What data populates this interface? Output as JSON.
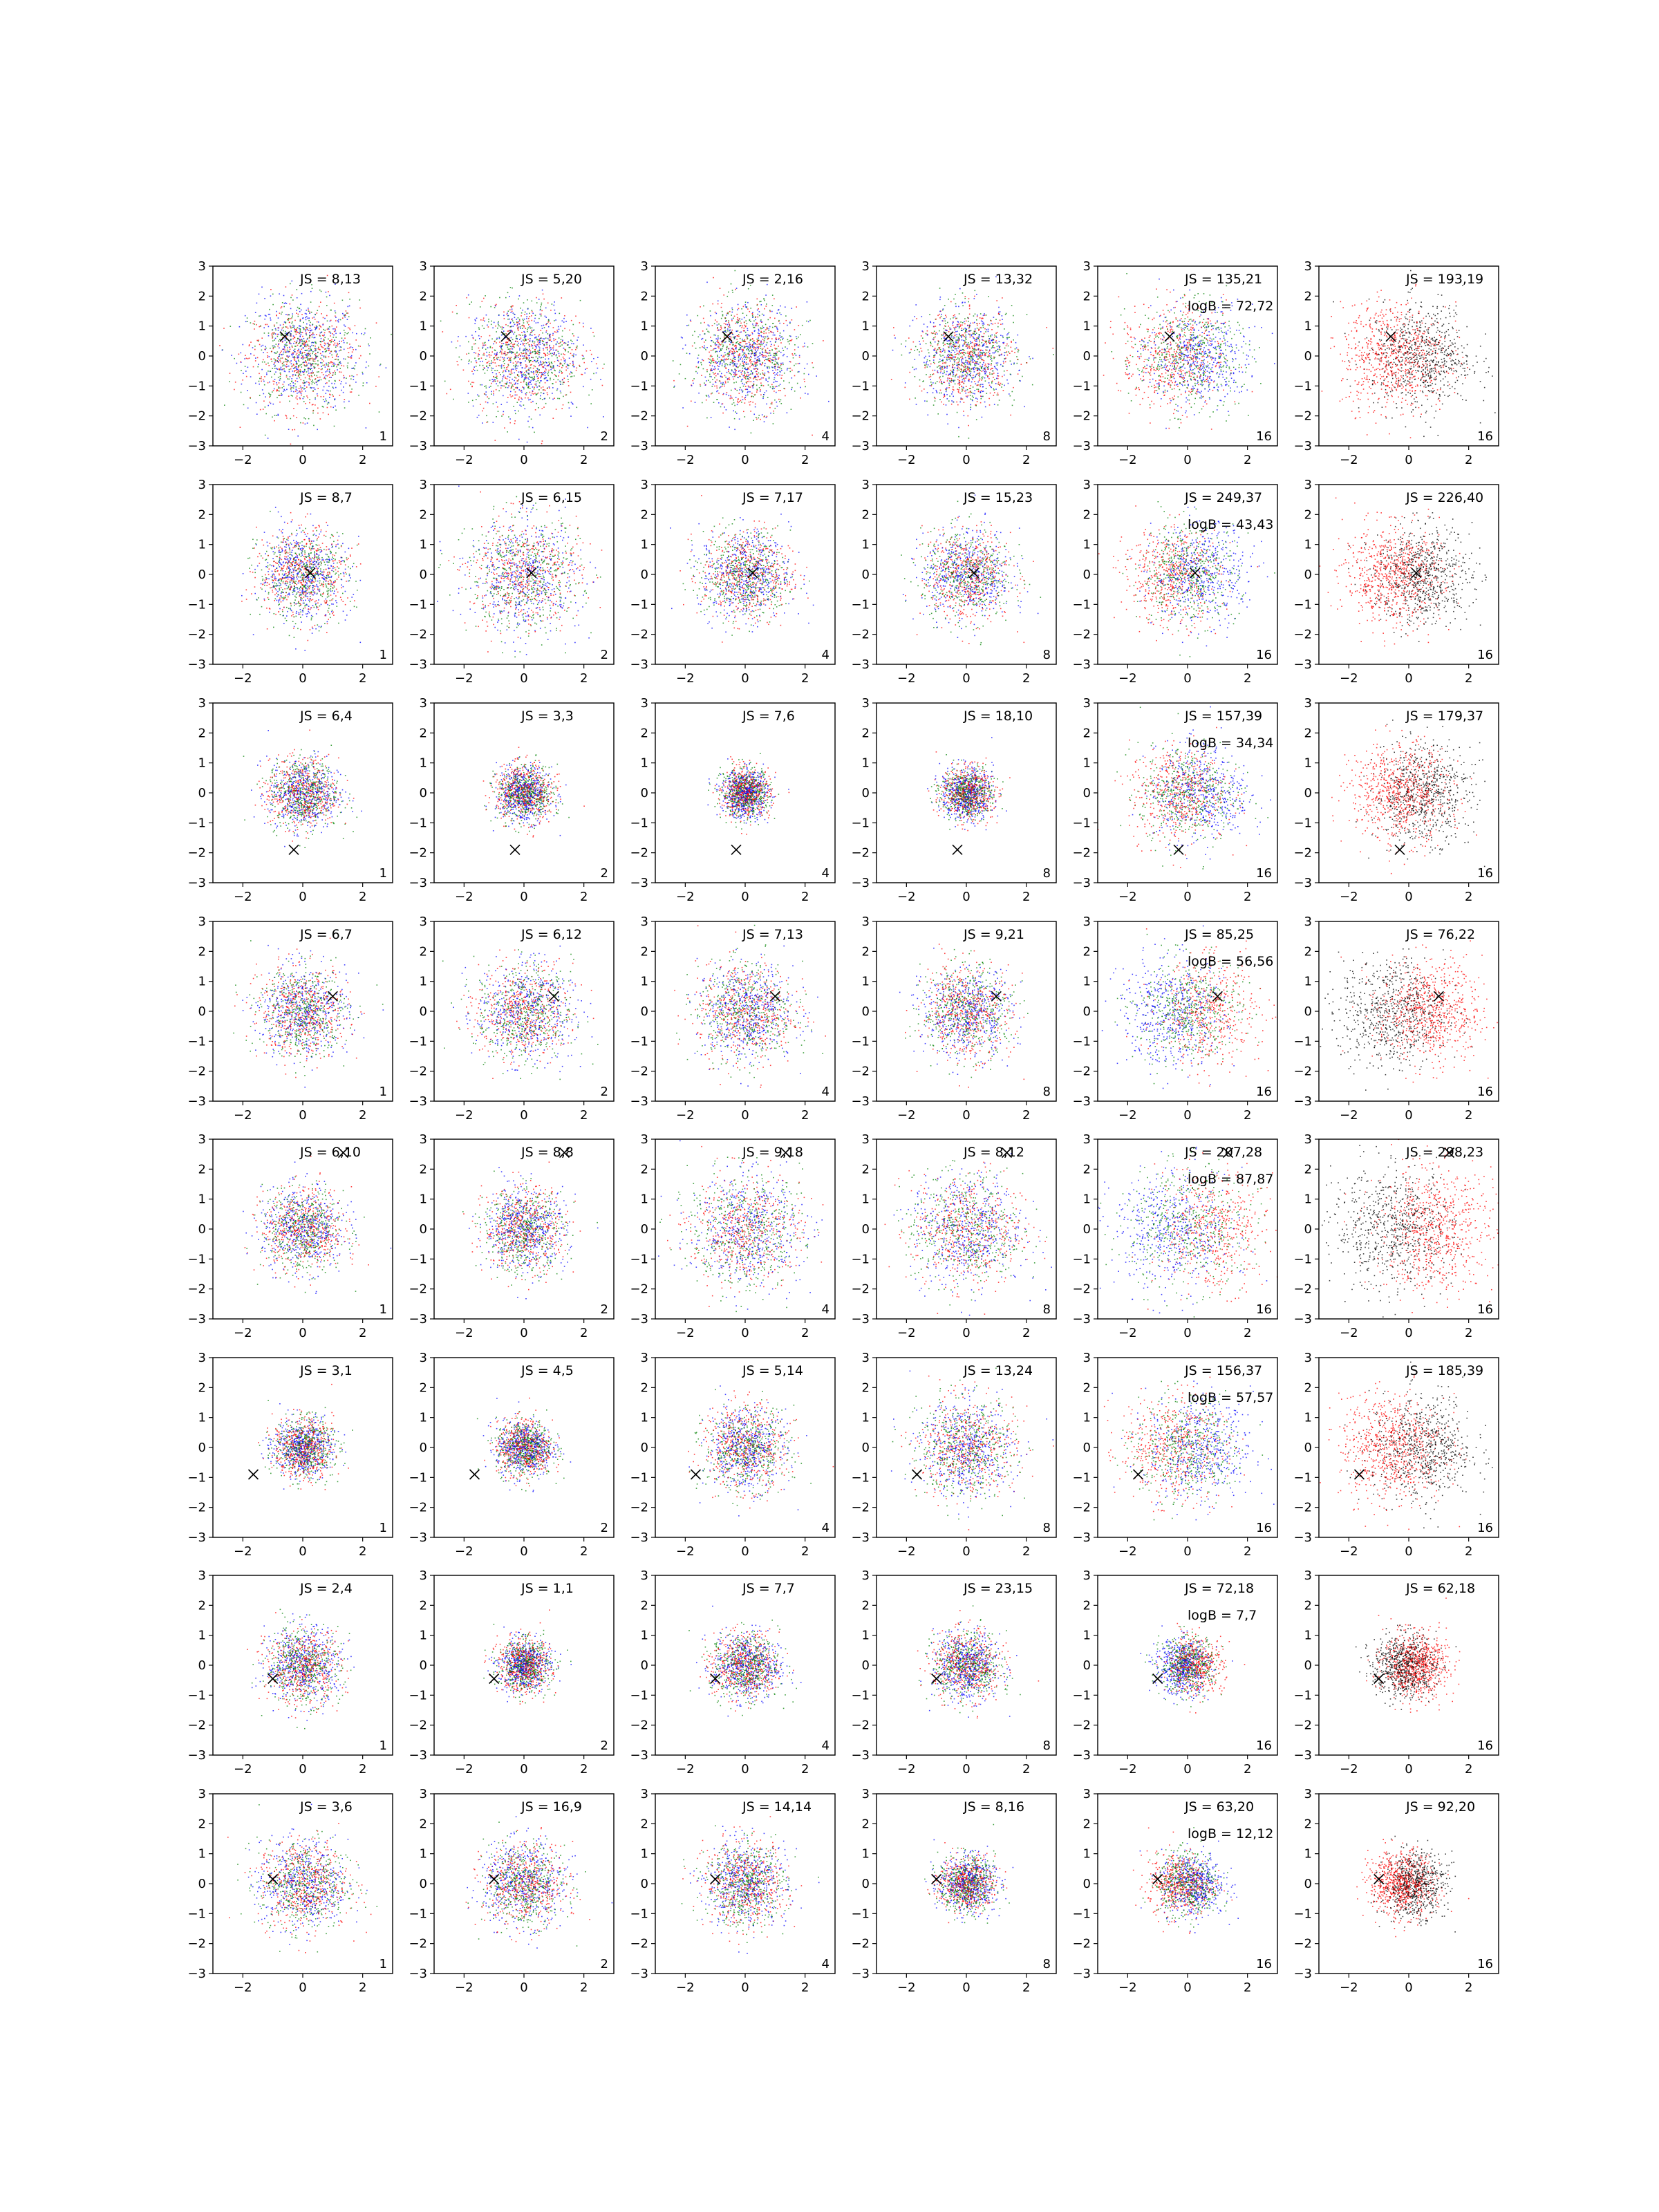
{
  "chart_data": {
    "type": "scatter",
    "layout": "8x6 grid of scatter panels",
    "xlim": [
      -3,
      3
    ],
    "ylim": [
      -3,
      3
    ],
    "xticks": [
      "−2",
      "0",
      "2"
    ],
    "yticks": [
      "3",
      "2",
      "1",
      "0",
      "−1",
      "−2",
      "−3"
    ],
    "grid": false,
    "colors": {
      "red": "#ff0000",
      "green": "#008000",
      "blue": "#0000ff",
      "black": "#000000"
    },
    "column_corner_labels": [
      "1",
      "2",
      "4",
      "8",
      "16",
      "16"
    ],
    "last_column_colors": [
      "red",
      "black"
    ],
    "rows": [
      {
        "marker": [
          -0.6,
          0.65
        ],
        "js": [
          "JS = 8,13",
          "JS = 5,20",
          "JS = 2,16",
          "JS = 13,32",
          "JS = 135,21",
          "JS = 193,19"
        ],
        "logb": "logB = 72,72",
        "shape": {
          "spread": [
            1.5,
            1.5,
            1.4,
            1.3,
            1.4,
            1.4
          ],
          "shift": [
            -0.9,
            0.9
          ]
        }
      },
      {
        "marker": [
          0.25,
          0.05
        ],
        "js": [
          "JS = 8,7",
          "JS = 6,15",
          "JS = 7,17",
          "JS = 15,23",
          "JS = 249,37",
          "JS = 226,40"
        ],
        "logb": "logB = 43,43",
        "shape": {
          "spread": [
            1.2,
            1.5,
            1.2,
            1.2,
            1.3,
            1.3
          ],
          "shift": [
            -1.0,
            1.0
          ]
        }
      },
      {
        "marker": [
          -0.3,
          -1.9
        ],
        "js": [
          "JS = 6,4",
          "JS = 3,3",
          "JS = 7,6",
          "JS = 18,10",
          "JS = 157,39",
          "JS = 179,37"
        ],
        "logb": "logB = 34,34",
        "shape": {
          "spread": [
            0.95,
            0.75,
            0.65,
            0.7,
            1.3,
            1.3
          ],
          "shift": [
            -0.6,
            1.0
          ]
        }
      },
      {
        "marker": [
          1.0,
          0.5
        ],
        "js": [
          "JS = 6,7",
          "JS = 6,12",
          "JS = 7,13",
          "JS = 9,21",
          "JS = 85,25",
          "JS = 76,22"
        ],
        "logb": "logB = 56,56",
        "shape": {
          "spread": [
            1.2,
            1.3,
            1.3,
            1.2,
            1.4,
            1.4
          ],
          "shift": [
            1.2,
            -1.2
          ]
        }
      },
      {
        "marker": [
          1.35,
          2.55
        ],
        "js": [
          "JS = 6,10",
          "JS = 8,8",
          "JS = 9,18",
          "JS = 8,12",
          "JS = 207,28",
          "JS = 298,23"
        ],
        "logb": "logB = 87,87",
        "shape": {
          "spread": [
            1.1,
            1.1,
            1.5,
            1.5,
            1.6,
            1.6
          ],
          "shift": [
            1.6,
            -1.2
          ]
        }
      },
      {
        "marker": [
          -1.65,
          -0.9
        ],
        "js": [
          "JS = 3,1",
          "JS = 4,5",
          "JS = 5,14",
          "JS = 13,24",
          "JS = 156,37",
          "JS = 185,39"
        ],
        "logb": "logB = 57,57",
        "shape": {
          "spread": [
            0.8,
            0.75,
            1.1,
            1.3,
            1.4,
            1.4
          ],
          "shift": [
            -1.0,
            0.9
          ]
        }
      },
      {
        "marker": [
          -1.0,
          -0.45
        ],
        "js": [
          "JS = 2,4",
          "JS = 1,1",
          "JS = 7,7",
          "JS = 23,15",
          "JS = 72,18",
          "JS = 62,18"
        ],
        "logb": "logB = 7,7",
        "shape": {
          "spread": [
            1.0,
            0.7,
            0.9,
            0.9,
            0.75,
            0.85
          ],
          "shift": [
            0.4,
            -0.4
          ]
        }
      },
      {
        "marker": [
          -1.0,
          0.15
        ],
        "js": [
          "JS = 3,6",
          "JS = 16,9",
          "JS = 14,14",
          "JS = 8,16",
          "JS = 63,20",
          "JS = 92,20"
        ],
        "logb": "logB = 12,12",
        "shape": {
          "spread": [
            1.2,
            1.1,
            1.1,
            0.75,
            0.85,
            0.85
          ],
          "shift": [
            -0.5,
            0.4
          ]
        }
      }
    ]
  }
}
